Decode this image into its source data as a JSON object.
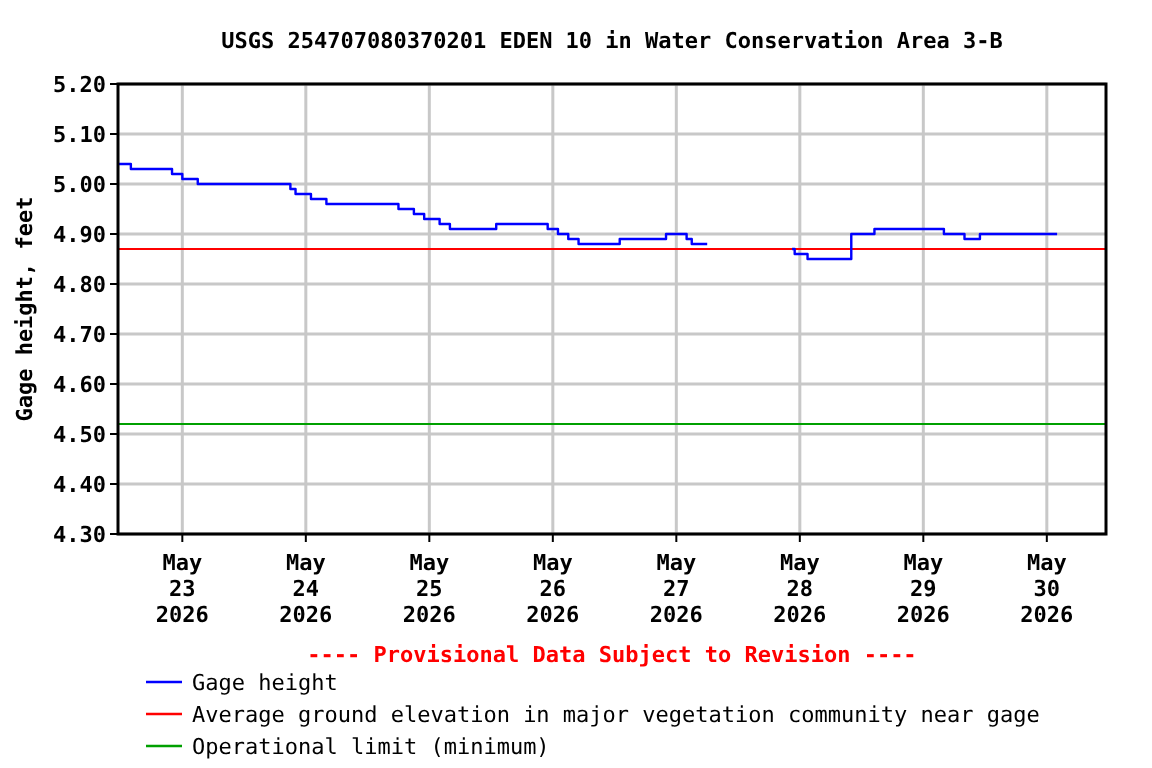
{
  "chart_data": {
    "type": "step",
    "title": "USGS 254707080370201 EDEN 10 in Water Conservation Area 3-B",
    "ylabel": "Gage height, feet",
    "x": [
      "2026-05-22T11:30",
      "2026-05-22T14:00",
      "2026-05-22T22:00",
      "2026-05-23T00:00",
      "2026-05-23T03:00",
      "2026-05-23T21:00",
      "2026-05-23T22:00",
      "2026-05-24T01:00",
      "2026-05-24T04:00",
      "2026-05-24T18:00",
      "2026-05-24T21:00",
      "2026-05-24T23:00",
      "2026-05-25T02:00",
      "2026-05-25T04:00",
      "2026-05-25T13:00",
      "2026-05-25T23:00",
      "2026-05-26T01:00",
      "2026-05-26T03:00",
      "2026-05-26T05:00",
      "2026-05-26T13:00",
      "2026-05-26T22:00",
      "2026-05-27T02:00",
      "2026-05-27T03:00",
      "2026-05-27T06:00",
      "2026-05-27T12:00",
      "2026-05-27T22:30",
      "2026-05-27T23:00",
      "2026-05-28T01:30",
      "2026-05-28T10:00",
      "2026-05-28T14:30",
      "2026-05-29T04:00",
      "2026-05-29T08:00",
      "2026-05-29T11:00",
      "2026-05-30T02:00"
    ],
    "series": [
      {
        "name": "Gage height",
        "color": "#0000ff",
        "values": [
          5.04,
          5.03,
          5.02,
          5.01,
          5.0,
          4.99,
          4.98,
          4.97,
          4.96,
          4.95,
          4.94,
          4.93,
          4.92,
          4.91,
          4.92,
          4.91,
          4.9,
          4.89,
          4.88,
          4.89,
          4.9,
          4.89,
          4.88,
          4.88,
          null,
          4.87,
          4.86,
          4.85,
          4.9,
          4.91,
          4.9,
          4.89,
          4.9,
          4.9
        ]
      }
    ],
    "ref_lines": [
      {
        "axis": "y",
        "value": 4.87,
        "label": "Average ground elevation in major vegetation community near gage",
        "color": "#ff0000"
      },
      {
        "axis": "y",
        "value": 4.52,
        "label": "Operational limit (minimum)",
        "color": "#00a000"
      }
    ],
    "annotations": [
      "---- Provisional Data Subject to Revision ----"
    ],
    "xlim": [
      "2026-05-22T11:30",
      "2026-05-30T11:30"
    ],
    "xticks": [
      {
        "value": "2026-05-23",
        "label": "May 23 2026"
      },
      {
        "value": "2026-05-24",
        "label": "May 24 2026"
      },
      {
        "value": "2026-05-25",
        "label": "May 25 2026"
      },
      {
        "value": "2026-05-26",
        "label": "May 26 2026"
      },
      {
        "value": "2026-05-27",
        "label": "May 27 2026"
      },
      {
        "value": "2026-05-28",
        "label": "May 28 2026"
      },
      {
        "value": "2026-05-29",
        "label": "May 29 2026"
      },
      {
        "value": "2026-05-30",
        "label": "May 30 2026"
      }
    ],
    "ylim": [
      4.3,
      5.2
    ],
    "yticks": [
      {
        "value": 4.3,
        "label": "4.30"
      },
      {
        "value": 4.4,
        "label": "4.40"
      },
      {
        "value": 4.5,
        "label": "4.50"
      },
      {
        "value": 4.6,
        "label": "4.60"
      },
      {
        "value": 4.7,
        "label": "4.70"
      },
      {
        "value": 4.8,
        "label": "4.80"
      },
      {
        "value": 4.9,
        "label": "4.90"
      },
      {
        "value": 5.0,
        "label": "5.00"
      },
      {
        "value": 5.1,
        "label": "5.10"
      },
      {
        "value": 5.2,
        "label": "5.20"
      }
    ],
    "grid": true,
    "legend": "bottom",
    "line_style": "solid",
    "marker": "none"
  }
}
